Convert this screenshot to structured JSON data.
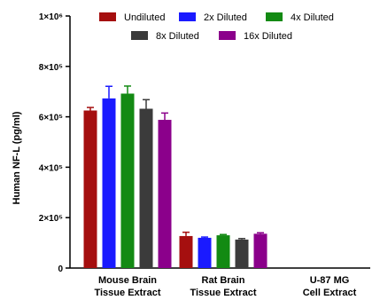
{
  "chart_data": {
    "type": "bar",
    "title": "",
    "xlabel": "",
    "ylabel": "Human NF-L (pg/ml)",
    "ylim": [
      0,
      1000000
    ],
    "y_ticks": [
      {
        "value": 0,
        "label": "0"
      },
      {
        "value": 200000,
        "label": "2×10⁵"
      },
      {
        "value": 400000,
        "label": "4×10⁵"
      },
      {
        "value": 600000,
        "label": "6×10⁵"
      },
      {
        "value": 800000,
        "label": "8×10⁵"
      },
      {
        "value": 1000000,
        "label": "1×10⁶"
      }
    ],
    "categories": [
      {
        "line1": "Mouse Brain",
        "line2": "Tissue Extract"
      },
      {
        "line1": "Rat Brain",
        "line2": "Tissue Extract"
      },
      {
        "line1": "U-87 MG",
        "line2": "Cell Extract"
      }
    ],
    "series": [
      {
        "name": "Undiluted",
        "color": "#a50f0f",
        "values": [
          625000,
          127000,
          0
        ],
        "errors": [
          12000,
          15000,
          0
        ]
      },
      {
        "name": "2x Diluted",
        "color": "#1a1aff",
        "values": [
          673000,
          120000,
          0
        ],
        "errors": [
          48000,
          3000,
          0
        ]
      },
      {
        "name": "4x Diluted",
        "color": "#138a13",
        "values": [
          692000,
          130000,
          0
        ],
        "errors": [
          30000,
          3000,
          0
        ]
      },
      {
        "name": "8x Diluted",
        "color": "#3b3b3b",
        "values": [
          632000,
          113000,
          0
        ],
        "errors": [
          36000,
          4000,
          0
        ]
      },
      {
        "name": "16x Diluted",
        "color": "#8b008b",
        "values": [
          588000,
          136000,
          0
        ],
        "errors": [
          27000,
          4000,
          0
        ]
      }
    ],
    "legend_placement": "top",
    "grid": false,
    "error_bars": true
  }
}
